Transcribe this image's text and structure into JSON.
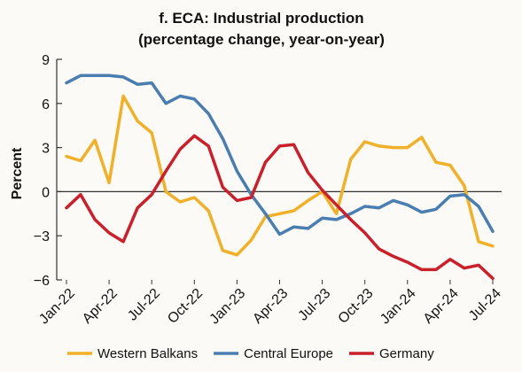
{
  "chart_data": {
    "type": "line",
    "title": "f. ECA: Industrial production",
    "subtitle": "(percentage change, year-on-year)",
    "ylabel": "Percent",
    "xlabel": "",
    "ylim": [
      -6,
      9
    ],
    "yticks": [
      -6,
      -3,
      0,
      3,
      6,
      9
    ],
    "ytick_labels": [
      "−6",
      "−3",
      "0",
      "3",
      "6",
      "9"
    ],
    "grid": false,
    "x": [
      "Jan-22",
      "Feb-22",
      "Mar-22",
      "Apr-22",
      "May-22",
      "Jun-22",
      "Jul-22",
      "Aug-22",
      "Sep-22",
      "Oct-22",
      "Nov-22",
      "Dec-22",
      "Jan-23",
      "Feb-23",
      "Mar-23",
      "Apr-23",
      "May-23",
      "Jun-23",
      "Jul-23",
      "Aug-23",
      "Sep-23",
      "Oct-23",
      "Nov-23",
      "Dec-23",
      "Jan-24",
      "Feb-24",
      "Mar-24",
      "Apr-24",
      "May-24",
      "Jun-24",
      "Jul-24"
    ],
    "xtick_labels": [
      "Jan-22",
      "Apr-22",
      "Jul-22",
      "Oct-22",
      "Jan-23",
      "Apr-23",
      "Jul-23",
      "Oct-23",
      "Jan-24",
      "Apr-24",
      "Jul-24"
    ],
    "legend_position": "bottom",
    "series": [
      {
        "name": "Western Balkans",
        "color": "#f0b02a",
        "values": [
          2.4,
          2.1,
          3.5,
          0.6,
          6.5,
          4.8,
          4.0,
          0.0,
          -0.7,
          -0.4,
          -1.3,
          -4.0,
          -4.3,
          -3.3,
          -1.7,
          -1.5,
          -1.3,
          -0.6,
          0.0,
          -1.5,
          2.2,
          3.4,
          3.1,
          3.0,
          3.0,
          3.7,
          2.0,
          1.8,
          0.4,
          -3.4,
          -3.7
        ]
      },
      {
        "name": "Central Europe",
        "color": "#4b7eb0",
        "values": [
          7.4,
          7.9,
          7.9,
          7.9,
          7.8,
          7.3,
          7.4,
          6.0,
          6.5,
          6.3,
          5.3,
          3.6,
          1.4,
          -0.2,
          -1.5,
          -2.9,
          -2.4,
          -2.5,
          -1.8,
          -1.9,
          -1.5,
          -1.0,
          -1.1,
          -0.6,
          -0.9,
          -1.4,
          -1.2,
          -0.3,
          -0.2,
          -1.0,
          -2.7
        ]
      },
      {
        "name": "Germany",
        "color": "#c8212c",
        "values": [
          -1.1,
          -0.2,
          -1.9,
          -2.8,
          -3.4,
          -1.1,
          -0.2,
          1.4,
          2.9,
          3.8,
          3.1,
          0.3,
          -0.6,
          -0.4,
          2.0,
          3.1,
          3.2,
          1.3,
          0.1,
          -0.9,
          -1.9,
          -2.8,
          -3.9,
          -4.4,
          -4.8,
          -5.3,
          -5.3,
          -4.6,
          -5.2,
          -5.0,
          -5.9
        ]
      }
    ]
  }
}
